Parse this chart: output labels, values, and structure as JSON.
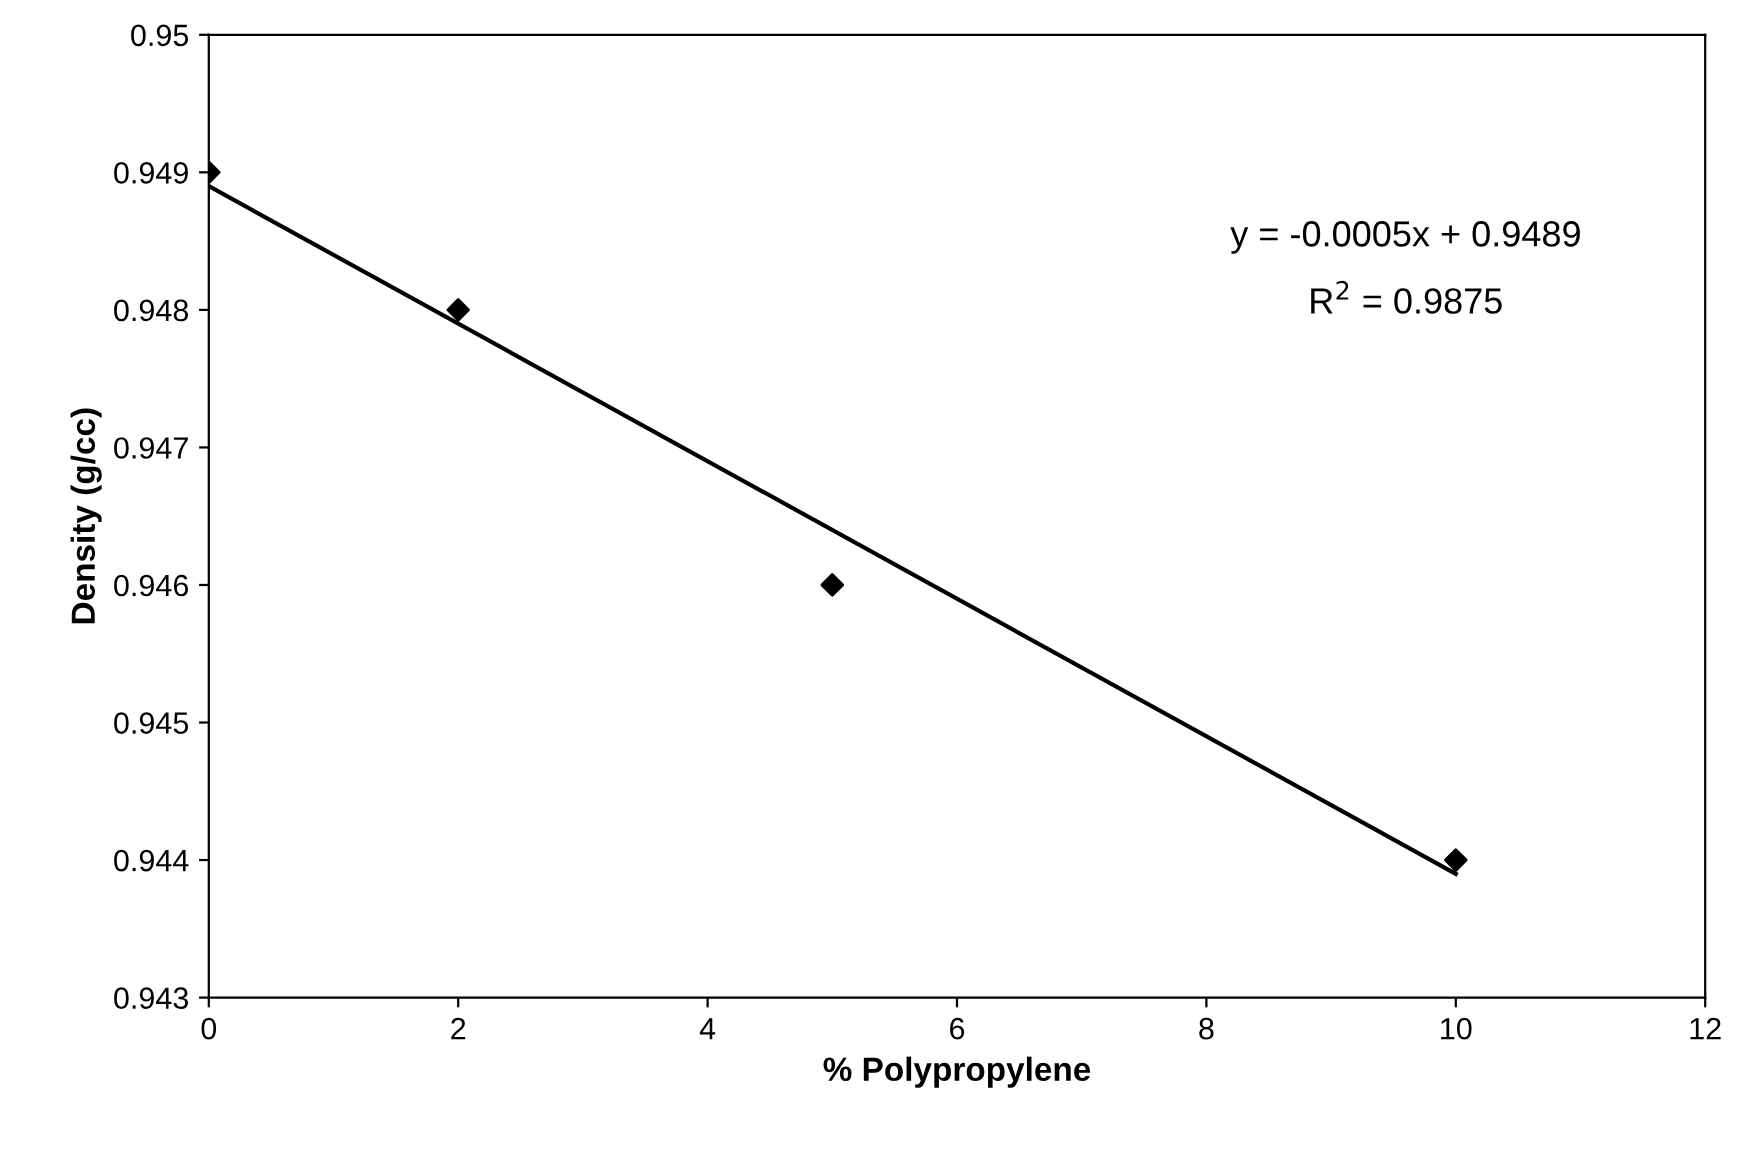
{
  "chart_data": {
    "type": "scatter",
    "xlabel": "% Polypropylene",
    "ylabel": "Density (g/cc)",
    "series": [
      {
        "color": "#000000",
        "marker": "diamond",
        "x": [
          0,
          2,
          5,
          10
        ],
        "values": [
          0.949,
          0.948,
          0.946,
          0.944
        ]
      },
      {
        "type": "line",
        "color": "#000000",
        "marker": "none",
        "line_style": "solid",
        "x": [
          0,
          10
        ],
        "values": [
          0.9489,
          0.9439
        ]
      }
    ],
    "annotations": [
      "y = -0.0005x + 0.9489",
      "R$^{2}$ = 0.9875"
    ],
    "xlim": [
      0,
      12
    ],
    "xticks": [
      0,
      2,
      4,
      6,
      8,
      10,
      12
    ],
    "ylim": [
      0.943,
      0.95
    ],
    "yticks": [
      0.943,
      0.944,
      0.945,
      0.946,
      0.947,
      0.948,
      0.949,
      0.95
    ],
    "grid": false,
    "legend": false
  }
}
